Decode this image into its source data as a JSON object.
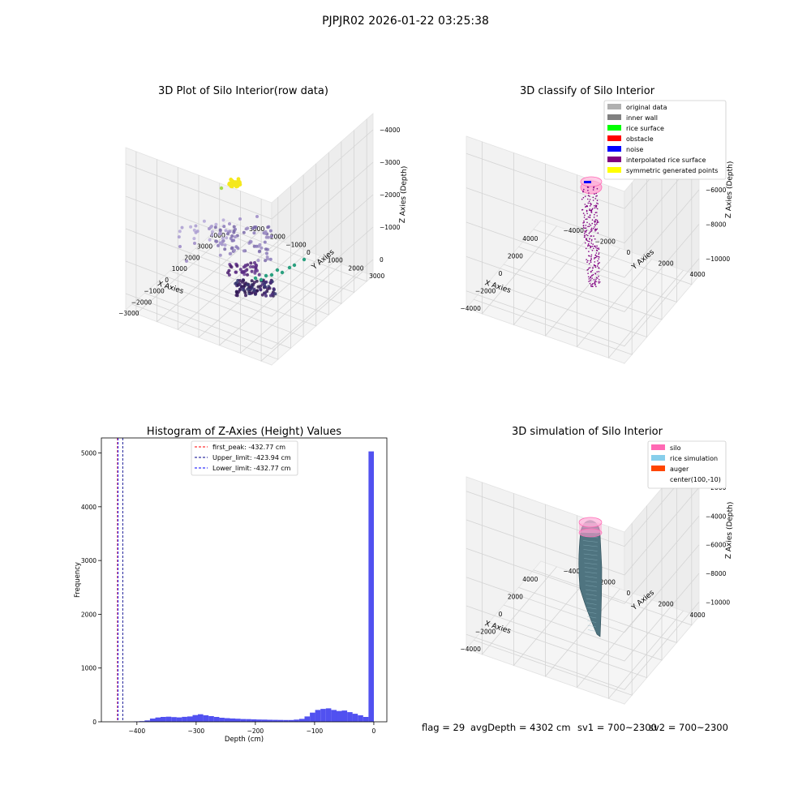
{
  "suptitle": "PJPJR02 2026-01-22 03:25:38",
  "status": {
    "flag": "flag = 29",
    "avg_depth": "avgDepth = 4302 cm",
    "sv1": "sv1 = 700~2300",
    "sv2": "sv2 = 700~2300"
  },
  "chart_data": [
    {
      "type": "scatter",
      "panel": "3d-raw",
      "title": "3D Plot of Silo Interior(row data)",
      "xlabel": "X Axies",
      "ylabel": "Y Axies",
      "zlabel": "Z Axies (Depth)",
      "x_ticks": [
        "−3000",
        "−2000",
        "−1000",
        "0",
        "1000",
        "2000",
        "3000",
        "4000"
      ],
      "y_ticks": [
        "−3000",
        "−2000",
        "−1000",
        "0",
        "1000",
        "2000",
        "3000"
      ],
      "z_ticks": [
        "0",
        "−1000",
        "−2000",
        "−3000",
        "−4000"
      ],
      "xlim": [
        -3000,
        4000
      ],
      "ylim": [
        -3000,
        3000
      ],
      "zlim": [
        -4300,
        0
      ],
      "grid": true
    },
    {
      "type": "scatter",
      "panel": "3d-classify",
      "title": "3D classify of Silo Interior",
      "xlabel": "X Axies",
      "ylabel": "Y Axies",
      "zlabel": "Z Axies (Depth)",
      "x_ticks": [
        "−4000",
        "−2000",
        "0",
        "2000",
        "4000"
      ],
      "y_ticks": [
        "−4000",
        "−2000",
        "0",
        "2000",
        "4000"
      ],
      "z_ticks": [
        "−2000",
        "−4000",
        "−6000",
        "−8000",
        "−10000"
      ],
      "legend_position": "top-right",
      "legend": [
        {
          "label": "original data",
          "color": "#b0b0b0"
        },
        {
          "label": "inner wall",
          "color": "#808080"
        },
        {
          "label": "rice surface",
          "color": "#00ff00"
        },
        {
          "label": "obstacle",
          "color": "#ff0000"
        },
        {
          "label": "noise",
          "color": "#0000ff"
        },
        {
          "label": "interpolated rice surface",
          "color": "#800080"
        },
        {
          "label": "symmetric generated points",
          "color": "#ffff00"
        }
      ],
      "grid": true
    },
    {
      "type": "bar",
      "panel": "histogram",
      "title": "Histogram of Z-Axies (Height) Values",
      "xlabel": "Depth (cm)",
      "ylabel": "Frequency",
      "xlim": [
        -460,
        22
      ],
      "ylim": [
        0,
        5280
      ],
      "x_ticks": [
        -400,
        -300,
        -200,
        -100,
        0
      ],
      "x_tick_labels": [
        "−400",
        "−300",
        "−200",
        "−100",
        "0"
      ],
      "y_ticks": [
        0,
        1000,
        2000,
        3000,
        4000,
        5000
      ],
      "bin_width": 9,
      "bin_starts": [
        -405,
        -396,
        -387,
        -378,
        -369,
        -360,
        -351,
        -342,
        -333,
        -324,
        -315,
        -306,
        -297,
        -288,
        -279,
        -270,
        -261,
        -252,
        -243,
        -234,
        -225,
        -216,
        -207,
        -198,
        -189,
        -180,
        -171,
        -162,
        -153,
        -144,
        -135,
        -126,
        -117,
        -108,
        -99,
        -90,
        -81,
        -72,
        -63,
        -54,
        -45,
        -36,
        -27,
        -18,
        -9
      ],
      "values": [
        8,
        12,
        25,
        60,
        80,
        90,
        95,
        88,
        82,
        92,
        100,
        125,
        140,
        120,
        105,
        90,
        75,
        68,
        62,
        58,
        52,
        50,
        45,
        42,
        40,
        38,
        36,
        35,
        33,
        33,
        40,
        55,
        100,
        170,
        220,
        240,
        250,
        220,
        200,
        210,
        180,
        150,
        120,
        90,
        5030
      ],
      "bar_color": "#4b4bf0",
      "vlines": [
        {
          "label": "first_peak: -432.77 cm",
          "x": -432.77,
          "color": "#ff0000"
        },
        {
          "label": "Upper_limit: -423.94 cm",
          "x": -423.94,
          "color": "#00008b"
        },
        {
          "label": "Lower_limit: -432.77 cm",
          "x": -432.77,
          "color": "#0000ff"
        }
      ],
      "legend_position": "top-center",
      "grid": false
    },
    {
      "type": "scatter",
      "panel": "3d-simulation",
      "title": "3D simulation of Silo Interior",
      "xlabel": "X Axies",
      "ylabel": "Y Axies",
      "zlabel": "Z Axies (Depth)",
      "x_ticks": [
        "−4000",
        "−2000",
        "0",
        "2000",
        "4000"
      ],
      "y_ticks": [
        "−4000",
        "−2000",
        "0",
        "2000",
        "4000"
      ],
      "z_ticks": [
        "0",
        "−2000",
        "−4000",
        "−6000",
        "−8000",
        "−10000"
      ],
      "legend_position": "top-right",
      "legend": [
        {
          "label": "silo",
          "color": "#ff69b4"
        },
        {
          "label": "rice simulation",
          "color": "#87ceeb"
        },
        {
          "label": "auger",
          "color": "#ff4500"
        },
        {
          "label": "center(100,-10)",
          "color": ""
        }
      ],
      "grid": true
    }
  ]
}
